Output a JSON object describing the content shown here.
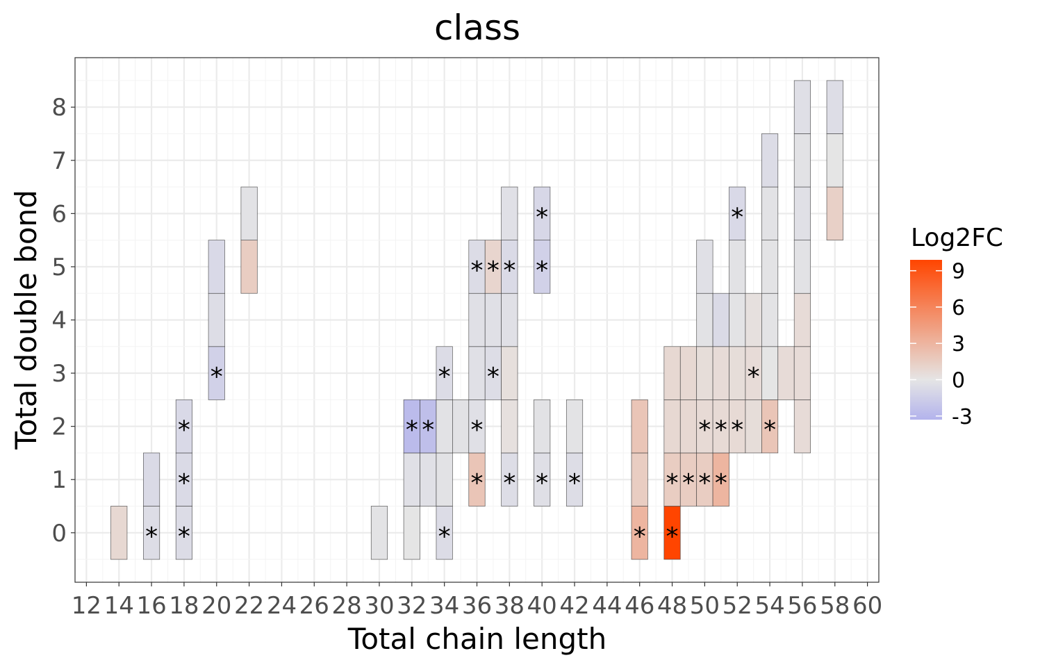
{
  "chart_data": {
    "type": "heatmap",
    "title": "class",
    "xlabel": "Total chain length",
    "ylabel": "Total double bond",
    "xlim": [
      11.3,
      60.7
    ],
    "ylim": [
      -0.93,
      8.93
    ],
    "x_ticks": [
      12,
      14,
      16,
      18,
      20,
      22,
      24,
      26,
      28,
      30,
      32,
      34,
      36,
      38,
      40,
      42,
      44,
      46,
      48,
      50,
      52,
      54,
      56,
      58,
      60
    ],
    "y_ticks": [
      0,
      1,
      2,
      3,
      4,
      5,
      6,
      7,
      8
    ],
    "grid": true,
    "legend": {
      "title": "Log2FC",
      "placement": "right",
      "ticks": [
        9,
        6,
        3,
        0,
        -3
      ],
      "range": [
        -3.3,
        9.9
      ],
      "low_color": "#b3b3ec",
      "mid_color": "#e5e5e5",
      "high_color": "#ff4500",
      "midpoint": 0
    },
    "significance_marker": "*",
    "tiles": [
      {
        "x": 14,
        "y": 0,
        "value": 0.8,
        "sig": false
      },
      {
        "x": 16,
        "y": 0,
        "value": -0.5,
        "sig": true
      },
      {
        "x": 16,
        "y": 1,
        "value": -0.7,
        "sig": false
      },
      {
        "x": 18,
        "y": 0,
        "value": -0.6,
        "sig": true
      },
      {
        "x": 18,
        "y": 1,
        "value": -0.7,
        "sig": true
      },
      {
        "x": 18,
        "y": 2,
        "value": -0.8,
        "sig": true
      },
      {
        "x": 20,
        "y": 3,
        "value": -1.3,
        "sig": true
      },
      {
        "x": 20,
        "y": 4,
        "value": -0.5,
        "sig": false
      },
      {
        "x": 20,
        "y": 5,
        "value": -0.8,
        "sig": false
      },
      {
        "x": 22,
        "y": 5,
        "value": 1.5,
        "sig": false
      },
      {
        "x": 22,
        "y": 6,
        "value": -0.2,
        "sig": false
      },
      {
        "x": 30,
        "y": 0,
        "value": -0.1,
        "sig": false
      },
      {
        "x": 32,
        "y": 0,
        "value": 0.0,
        "sig": false
      },
      {
        "x": 32,
        "y": 1,
        "value": -0.3,
        "sig": false
      },
      {
        "x": 32,
        "y": 2,
        "value": -2.8,
        "sig": true
      },
      {
        "x": 33,
        "y": 1,
        "value": -0.3,
        "sig": false
      },
      {
        "x": 33,
        "y": 2,
        "value": -2.5,
        "sig": true
      },
      {
        "x": 34,
        "y": 0,
        "value": -0.6,
        "sig": true
      },
      {
        "x": 34,
        "y": 1,
        "value": -0.2,
        "sig": false
      },
      {
        "x": 34,
        "y": 2,
        "value": -0.2,
        "sig": false
      },
      {
        "x": 34,
        "y": 3,
        "value": -0.6,
        "sig": true
      },
      {
        "x": 35,
        "y": 2,
        "value": -0.2,
        "sig": false
      },
      {
        "x": 36,
        "y": 1,
        "value": 2.0,
        "sig": true
      },
      {
        "x": 36,
        "y": 2,
        "value": -0.3,
        "sig": true
      },
      {
        "x": 36,
        "y": 3,
        "value": -0.3,
        "sig": false
      },
      {
        "x": 36,
        "y": 4,
        "value": -0.3,
        "sig": false
      },
      {
        "x": 36,
        "y": 5,
        "value": -0.6,
        "sig": true
      },
      {
        "x": 37,
        "y": 3,
        "value": -0.5,
        "sig": true
      },
      {
        "x": 37,
        "y": 4,
        "value": -0.3,
        "sig": false
      },
      {
        "x": 37,
        "y": 5,
        "value": 1.0,
        "sig": true
      },
      {
        "x": 38,
        "y": 1,
        "value": -0.5,
        "sig": true
      },
      {
        "x": 38,
        "y": 2,
        "value": 0.3,
        "sig": false
      },
      {
        "x": 38,
        "y": 3,
        "value": 0.4,
        "sig": false
      },
      {
        "x": 38,
        "y": 4,
        "value": -0.3,
        "sig": false
      },
      {
        "x": 38,
        "y": 5,
        "value": -0.7,
        "sig": true
      },
      {
        "x": 38,
        "y": 6,
        "value": -0.3,
        "sig": false
      },
      {
        "x": 40,
        "y": 1,
        "value": -0.4,
        "sig": true
      },
      {
        "x": 40,
        "y": 2,
        "value": -0.2,
        "sig": false
      },
      {
        "x": 40,
        "y": 5,
        "value": -1.3,
        "sig": true
      },
      {
        "x": 40,
        "y": 6,
        "value": -0.9,
        "sig": true
      },
      {
        "x": 42,
        "y": 1,
        "value": -0.5,
        "sig": true
      },
      {
        "x": 42,
        "y": 2,
        "value": -0.1,
        "sig": false
      },
      {
        "x": 46,
        "y": 0,
        "value": 3.0,
        "sig": true
      },
      {
        "x": 46,
        "y": 1,
        "value": 1.5,
        "sig": false
      },
      {
        "x": 46,
        "y": 2,
        "value": 2.0,
        "sig": false
      },
      {
        "x": 48,
        "y": 0,
        "value": 9.9,
        "sig": true
      },
      {
        "x": 48,
        "y": 1,
        "value": 1.5,
        "sig": true
      },
      {
        "x": 48,
        "y": 2,
        "value": 0.8,
        "sig": false
      },
      {
        "x": 48,
        "y": 3,
        "value": 0.8,
        "sig": false
      },
      {
        "x": 49,
        "y": 1,
        "value": 1.5,
        "sig": true
      },
      {
        "x": 49,
        "y": 2,
        "value": 0.8,
        "sig": false
      },
      {
        "x": 49,
        "y": 3,
        "value": 0.8,
        "sig": false
      },
      {
        "x": 50,
        "y": 1,
        "value": 1.5,
        "sig": true
      },
      {
        "x": 50,
        "y": 2,
        "value": 0.7,
        "sig": true
      },
      {
        "x": 50,
        "y": 3,
        "value": 0.5,
        "sig": false
      },
      {
        "x": 50,
        "y": 4,
        "value": -0.2,
        "sig": false
      },
      {
        "x": 50,
        "y": 5,
        "value": -0.3,
        "sig": false
      },
      {
        "x": 51,
        "y": 1,
        "value": 3.0,
        "sig": true
      },
      {
        "x": 51,
        "y": 2,
        "value": 0.7,
        "sig": true
      },
      {
        "x": 51,
        "y": 3,
        "value": 0.6,
        "sig": false
      },
      {
        "x": 51,
        "y": 4,
        "value": -0.7,
        "sig": false
      },
      {
        "x": 52,
        "y": 2,
        "value": 0.7,
        "sig": true
      },
      {
        "x": 52,
        "y": 3,
        "value": 0.5,
        "sig": false
      },
      {
        "x": 52,
        "y": 4,
        "value": -0.1,
        "sig": false
      },
      {
        "x": 52,
        "y": 5,
        "value": -0.2,
        "sig": false
      },
      {
        "x": 52,
        "y": 6,
        "value": -0.8,
        "sig": true
      },
      {
        "x": 53,
        "y": 2,
        "value": 0.5,
        "sig": false
      },
      {
        "x": 53,
        "y": 3,
        "value": 0.6,
        "sig": true
      },
      {
        "x": 53,
        "y": 4,
        "value": 0.3,
        "sig": false
      },
      {
        "x": 54,
        "y": 2,
        "value": 2.0,
        "sig": true
      },
      {
        "x": 54,
        "y": 3,
        "value": 0.0,
        "sig": false
      },
      {
        "x": 54,
        "y": 4,
        "value": -0.1,
        "sig": false
      },
      {
        "x": 54,
        "y": 5,
        "value": -0.1,
        "sig": false
      },
      {
        "x": 54,
        "y": 6,
        "value": -0.2,
        "sig": false
      },
      {
        "x": 54,
        "y": 7,
        "value": -0.6,
        "sig": false
      },
      {
        "x": 55,
        "y": 3,
        "value": 0.6,
        "sig": false
      },
      {
        "x": 56,
        "y": 2,
        "value": 0.6,
        "sig": false
      },
      {
        "x": 56,
        "y": 3,
        "value": 0.6,
        "sig": false
      },
      {
        "x": 56,
        "y": 4,
        "value": 0.6,
        "sig": false
      },
      {
        "x": 56,
        "y": 5,
        "value": -0.2,
        "sig": false
      },
      {
        "x": 56,
        "y": 6,
        "value": -0.3,
        "sig": false
      },
      {
        "x": 56,
        "y": 7,
        "value": -0.2,
        "sig": false
      },
      {
        "x": 56,
        "y": 8,
        "value": -0.4,
        "sig": false
      },
      {
        "x": 58,
        "y": 6,
        "value": 1.3,
        "sig": false
      },
      {
        "x": 58,
        "y": 7,
        "value": 0.0,
        "sig": false
      },
      {
        "x": 58,
        "y": 8,
        "value": -0.5,
        "sig": false
      }
    ]
  }
}
